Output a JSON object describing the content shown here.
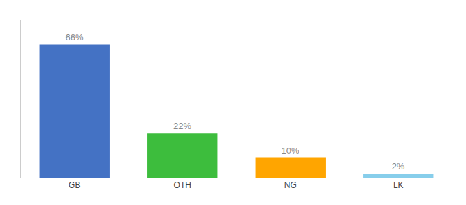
{
  "chart_data": {
    "type": "bar",
    "categories": [
      "GB",
      "OTH",
      "NG",
      "LK"
    ],
    "values": [
      66,
      22,
      10,
      2
    ],
    "value_labels": [
      "66%",
      "22%",
      "10%",
      "2%"
    ],
    "data_labels": true,
    "colors": [
      "#4472C4",
      "#3DBD3D",
      "#FFA500",
      "#87CEEB"
    ],
    "ylim": [
      0,
      78
    ],
    "grid": false,
    "tick_labels": "x"
  }
}
